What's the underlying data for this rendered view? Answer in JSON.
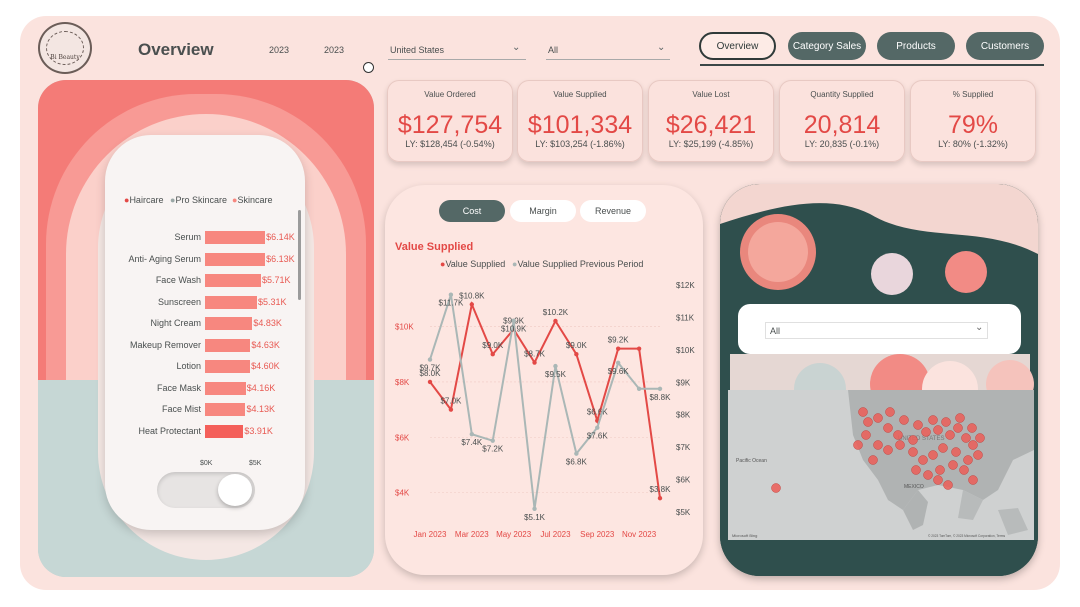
{
  "header": {
    "title": "Overview",
    "logo_text": "Bi Beauty",
    "year_start": "2023",
    "year_end": "2023",
    "country_filter": "United States",
    "category_filter": "All"
  },
  "nav": {
    "overview": "Overview",
    "category_sales": "Category Sales",
    "products": "Products",
    "customers": "Customers"
  },
  "kpis": [
    {
      "title": "Value Ordered",
      "value": "$127,754",
      "ly": "LY: $128,454 (-0.54%)"
    },
    {
      "title": "Value Supplied",
      "value": "$101,334",
      "ly": "LY: $103,254 (-1.86%)"
    },
    {
      "title": "Value Lost",
      "value": "$26,421",
      "ly": "LY: $25,199 (-4.85%)"
    },
    {
      "title": "Quantity Supplied",
      "value": "20,814",
      "ly": "LY: 20,835 (-0.1%)"
    },
    {
      "title": "% Supplied",
      "value": "79%",
      "ly": "LY: 80% (-1.32%)"
    }
  ],
  "colors": {
    "accent": "#e34946",
    "teal": "#546866",
    "bar": "#f7877f",
    "prev_line": "#aab7b6",
    "background": "#fbe3de"
  },
  "bar_chart": {
    "legend": [
      "Haircare",
      "Pro Skincare",
      "Skincare"
    ],
    "legend_colors": [
      "#e34946",
      "#9aa7a6",
      "#f7877f"
    ],
    "x_ticks": [
      "$0K",
      "$5K"
    ],
    "chart_data": {
      "type": "bar",
      "orientation": "horizontal",
      "categories": [
        "Serum",
        "Anti- Aging Serum",
        "Face Wash",
        "Sunscreen",
        "Night Cream",
        "Makeup Remover",
        "Lotion",
        "Face Mask",
        "Face Mist",
        "Heat Protectant"
      ],
      "values": [
        6.14,
        6.13,
        5.71,
        5.31,
        4.83,
        4.63,
        4.6,
        4.16,
        4.13,
        3.91
      ],
      "labels": [
        "$6.14K",
        "$6.13K",
        "$5.71K",
        "$5.31K",
        "$4.83K",
        "$4.63K",
        "$4.60K",
        "$4.16K",
        "$4.13K",
        "$3.91K"
      ],
      "xlim": [
        0,
        7
      ]
    }
  },
  "line_chart": {
    "tabs": [
      "Cost",
      "Margin",
      "Revenue"
    ],
    "title": "Value Supplied",
    "legend": [
      "Value Supplied",
      "Value Supplied Previous Period"
    ],
    "x_tick_labels": [
      "Jan 2023",
      "Mar 2023",
      "May 2023",
      "Jul 2023",
      "Sep 2023",
      "Nov 2023"
    ],
    "left_ticks": [
      "$4K",
      "$6K",
      "$8K",
      "$10K"
    ],
    "right_ticks": [
      "$5K",
      "$6K",
      "$7K",
      "$8K",
      "$9K",
      "$10K",
      "$11K",
      "$12K"
    ],
    "chart_data": {
      "type": "line",
      "x": [
        "Jan 2023",
        "Feb 2023",
        "Mar 2023",
        "Apr 2023",
        "May 2023",
        "Jun 2023",
        "Jul 2023",
        "Aug 2023",
        "Sep 2023",
        "Oct 2023",
        "Nov 2023",
        "Dec 2023"
      ],
      "series": [
        {
          "name": "Value Supplied",
          "axis": "left",
          "values": [
            8.0,
            7.0,
            10.8,
            9.0,
            9.9,
            8.7,
            10.2,
            9.0,
            6.6,
            9.2,
            9.2,
            3.8
          ],
          "labels": [
            "$8.0K",
            "$7.0K",
            "$10.8K",
            "$9.0K",
            "$9.9K",
            "$8.7K",
            "$10.2K",
            "$9.0K",
            "$6.6K",
            "$9.2K",
            "",
            "$3.8K"
          ]
        },
        {
          "name": "Value Supplied Previous Period",
          "axis": "right",
          "values": [
            9.7,
            11.7,
            7.4,
            7.2,
            10.9,
            5.1,
            9.5,
            6.8,
            7.6,
            9.6,
            8.8,
            8.8
          ],
          "labels": [
            "$9.7K",
            "$11.7K",
            "$7.4K",
            "$7.2K",
            "$10.9K",
            "$5.1K",
            "$9.5K",
            "$6.8K",
            "$7.6K",
            "$9.6K",
            "",
            "$8.8K"
          ]
        }
      ],
      "ylim_left": [
        3.3,
        11.5
      ],
      "ylim_right": [
        5,
        12
      ]
    }
  },
  "map": {
    "filter_value": "All",
    "ocean_label": "Pacific Ocean",
    "country_label": "UNITED STATES",
    "mexico_label": "MEXICO",
    "brand": "Microsoft Bing",
    "copyright": "© 2023 TomTom, © 2023 Microsoft Corporation, Terms"
  }
}
